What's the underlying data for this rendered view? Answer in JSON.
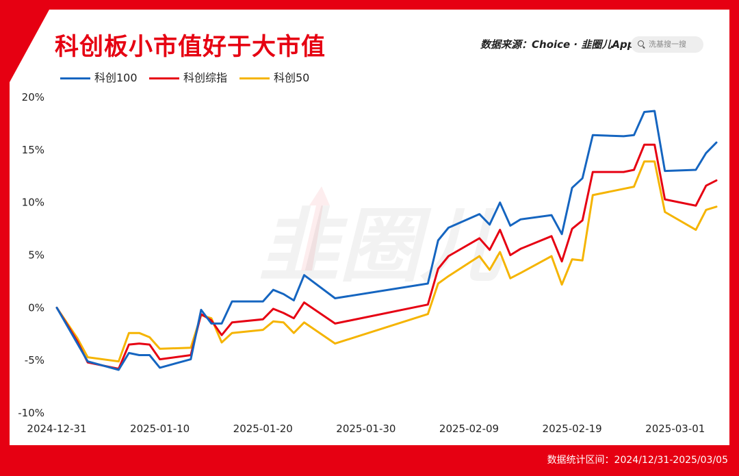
{
  "header": {
    "title": "科创板小市值好于大市值",
    "source": "数据来源：Choice · 韭圈儿App",
    "search_placeholder": "洗基搜一搜"
  },
  "watermark": "韭圈儿",
  "footer": {
    "range": "数据统计区间：2024/12/31-2025/03/05"
  },
  "colors": {
    "frame": "#e60012",
    "kc100": "#1565c0",
    "kczz": "#e60012",
    "kc50": "#f5b400"
  },
  "chart_data": {
    "type": "line",
    "x_ticks": [
      "2024-12-31",
      "2025-01-10",
      "2025-01-20",
      "2025-01-30",
      "2025-02-09",
      "2025-02-19",
      "2025-03-01"
    ],
    "y_ticks": [
      "20%",
      "15%",
      "10%",
      "5%",
      "0%",
      "-5%",
      "-10%"
    ],
    "ylim": [
      -10,
      20
    ],
    "xlim": [
      "2024-12-31",
      "2025-03-05"
    ],
    "legend_position": "top-left",
    "grid": false,
    "series": [
      {
        "name": "科创100",
        "color": "#1565c0",
        "points": [
          [
            "2024-12-31",
            0.0
          ],
          [
            "2025-01-02",
            -3.4
          ],
          [
            "2025-01-03",
            -5.1
          ],
          [
            "2025-01-06",
            -5.9
          ],
          [
            "2025-01-07",
            -4.3
          ],
          [
            "2025-01-08",
            -4.5
          ],
          [
            "2025-01-09",
            -4.5
          ],
          [
            "2025-01-10",
            -5.7
          ],
          [
            "2025-01-13",
            -4.9
          ],
          [
            "2025-01-14",
            -0.2
          ],
          [
            "2025-01-15",
            -1.5
          ],
          [
            "2025-01-16",
            -1.5
          ],
          [
            "2025-01-17",
            0.6
          ],
          [
            "2025-01-20",
            0.6
          ],
          [
            "2025-01-21",
            1.7
          ],
          [
            "2025-01-22",
            1.3
          ],
          [
            "2025-01-23",
            0.7
          ],
          [
            "2025-01-24",
            3.1
          ],
          [
            "2025-01-27",
            0.9
          ],
          [
            "2025-02-05",
            2.3
          ],
          [
            "2025-02-06",
            6.4
          ],
          [
            "2025-02-07",
            7.6
          ],
          [
            "2025-02-10",
            8.9
          ],
          [
            "2025-02-11",
            7.9
          ],
          [
            "2025-02-12",
            10.0
          ],
          [
            "2025-02-13",
            7.8
          ],
          [
            "2025-02-14",
            8.4
          ],
          [
            "2025-02-17",
            8.8
          ],
          [
            "2025-02-18",
            7.0
          ],
          [
            "2025-02-19",
            11.4
          ],
          [
            "2025-02-20",
            12.3
          ],
          [
            "2025-02-21",
            16.4
          ],
          [
            "2025-02-24",
            16.3
          ],
          [
            "2025-02-25",
            16.4
          ],
          [
            "2025-02-26",
            18.6
          ],
          [
            "2025-02-27",
            18.7
          ],
          [
            "2025-02-28",
            13.0
          ],
          [
            "2025-03-03",
            13.1
          ],
          [
            "2025-03-04",
            14.7
          ],
          [
            "2025-03-05",
            15.7
          ]
        ]
      },
      {
        "name": "科创综指",
        "color": "#e60012",
        "points": [
          [
            "2024-12-31",
            0.0
          ],
          [
            "2025-01-02",
            -3.2
          ],
          [
            "2025-01-03",
            -5.2
          ],
          [
            "2025-01-06",
            -5.8
          ],
          [
            "2025-01-07",
            -3.5
          ],
          [
            "2025-01-08",
            -3.4
          ],
          [
            "2025-01-09",
            -3.5
          ],
          [
            "2025-01-10",
            -4.9
          ],
          [
            "2025-01-13",
            -4.5
          ],
          [
            "2025-01-14",
            -0.6
          ],
          [
            "2025-01-15",
            -1.2
          ],
          [
            "2025-01-16",
            -2.6
          ],
          [
            "2025-01-17",
            -1.4
          ],
          [
            "2025-01-20",
            -1.1
          ],
          [
            "2025-01-21",
            -0.1
          ],
          [
            "2025-01-22",
            -0.5
          ],
          [
            "2025-01-23",
            -1.0
          ],
          [
            "2025-01-24",
            0.5
          ],
          [
            "2025-01-27",
            -1.5
          ],
          [
            "2025-02-05",
            0.3
          ],
          [
            "2025-02-06",
            3.7
          ],
          [
            "2025-02-07",
            4.9
          ],
          [
            "2025-02-10",
            6.6
          ],
          [
            "2025-02-11",
            5.5
          ],
          [
            "2025-02-12",
            7.4
          ],
          [
            "2025-02-13",
            5.0
          ],
          [
            "2025-02-14",
            5.6
          ],
          [
            "2025-02-17",
            6.8
          ],
          [
            "2025-02-18",
            4.4
          ],
          [
            "2025-02-19",
            7.5
          ],
          [
            "2025-02-20",
            8.3
          ],
          [
            "2025-02-21",
            12.9
          ],
          [
            "2025-02-24",
            12.9
          ],
          [
            "2025-02-25",
            13.1
          ],
          [
            "2025-02-26",
            15.5
          ],
          [
            "2025-02-27",
            15.5
          ],
          [
            "2025-02-28",
            10.3
          ],
          [
            "2025-03-03",
            9.7
          ],
          [
            "2025-03-04",
            11.6
          ],
          [
            "2025-03-05",
            12.1
          ]
        ]
      },
      {
        "name": "科创50",
        "color": "#f5b400",
        "points": [
          [
            "2024-12-31",
            0.0
          ],
          [
            "2025-01-02",
            -2.9
          ],
          [
            "2025-01-03",
            -4.7
          ],
          [
            "2025-01-06",
            -5.1
          ],
          [
            "2025-01-07",
            -2.4
          ],
          [
            "2025-01-08",
            -2.4
          ],
          [
            "2025-01-09",
            -2.8
          ],
          [
            "2025-01-10",
            -3.9
          ],
          [
            "2025-01-13",
            -3.8
          ],
          [
            "2025-01-14",
            -0.7
          ],
          [
            "2025-01-15",
            -1.0
          ],
          [
            "2025-01-16",
            -3.3
          ],
          [
            "2025-01-17",
            -2.4
          ],
          [
            "2025-01-20",
            -2.1
          ],
          [
            "2025-01-21",
            -1.3
          ],
          [
            "2025-01-22",
            -1.4
          ],
          [
            "2025-01-23",
            -2.4
          ],
          [
            "2025-01-24",
            -1.4
          ],
          [
            "2025-01-27",
            -3.4
          ],
          [
            "2025-02-05",
            -0.6
          ],
          [
            "2025-02-06",
            2.3
          ],
          [
            "2025-02-07",
            3.0
          ],
          [
            "2025-02-10",
            4.9
          ],
          [
            "2025-02-11",
            3.6
          ],
          [
            "2025-02-12",
            5.3
          ],
          [
            "2025-02-13",
            2.8
          ],
          [
            "2025-02-14",
            3.3
          ],
          [
            "2025-02-17",
            4.9
          ],
          [
            "2025-02-18",
            2.2
          ],
          [
            "2025-02-19",
            4.6
          ],
          [
            "2025-02-20",
            4.5
          ],
          [
            "2025-02-21",
            10.7
          ],
          [
            "2025-02-24",
            11.3
          ],
          [
            "2025-02-25",
            11.5
          ],
          [
            "2025-02-26",
            13.9
          ],
          [
            "2025-02-27",
            13.9
          ],
          [
            "2025-02-28",
            9.1
          ],
          [
            "2025-03-03",
            7.4
          ],
          [
            "2025-03-04",
            9.3
          ],
          [
            "2025-03-05",
            9.6
          ]
        ]
      }
    ]
  }
}
